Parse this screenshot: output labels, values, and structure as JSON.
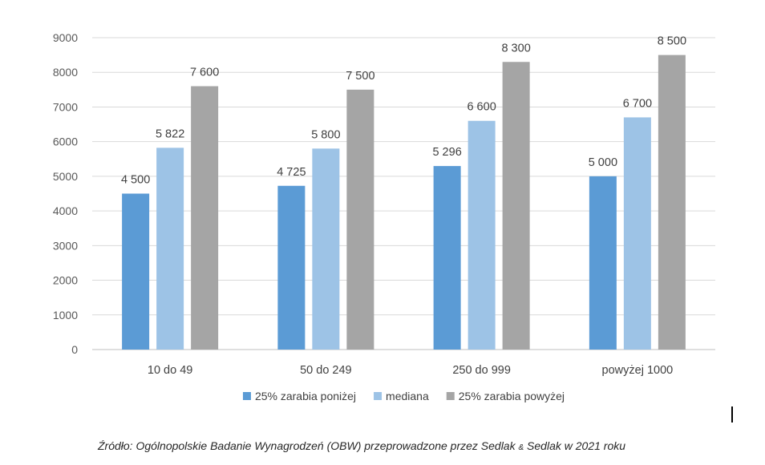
{
  "chart_data": {
    "type": "bar",
    "categories": [
      "10 do 49",
      "50 do 249",
      "250 do 999",
      "powyżej 1000"
    ],
    "series": [
      {
        "name": "25% zarabia poniżej",
        "color": "#5b9bd5",
        "values": [
          4500,
          4725,
          5296,
          5000
        ],
        "labels": [
          "4 500",
          "4 725",
          "5 296",
          "5 000"
        ]
      },
      {
        "name": "mediana",
        "color": "#9dc3e6",
        "values": [
          5822,
          5800,
          6600,
          6700
        ],
        "labels": [
          "5 822",
          "5 800",
          "6 600",
          "6 700"
        ]
      },
      {
        "name": "25% zarabia powyżej",
        "color": "#a5a5a5",
        "values": [
          7600,
          7500,
          8300,
          8500
        ],
        "labels": [
          "7 600",
          "7 500",
          "8 300",
          "8 500"
        ]
      }
    ],
    "ylim": [
      0,
      9000
    ],
    "yticks": [
      0,
      1000,
      2000,
      3000,
      4000,
      5000,
      6000,
      7000,
      8000,
      9000
    ],
    "ytick_labels": [
      "0",
      "1000",
      "2000",
      "3000",
      "4000",
      "5000",
      "6000",
      "7000",
      "8000",
      "9000"
    ],
    "grid": true,
    "legend": "bottom",
    "title": "",
    "xlabel": "",
    "ylabel": ""
  },
  "source": {
    "text_before": "Źródło: Ogólnopolskie Badanie Wynagrodzeń (OBW) przeprowadzone przez Sedlak ",
    "amp": "&",
    "text_after": " Sedlak w 2021 roku"
  }
}
